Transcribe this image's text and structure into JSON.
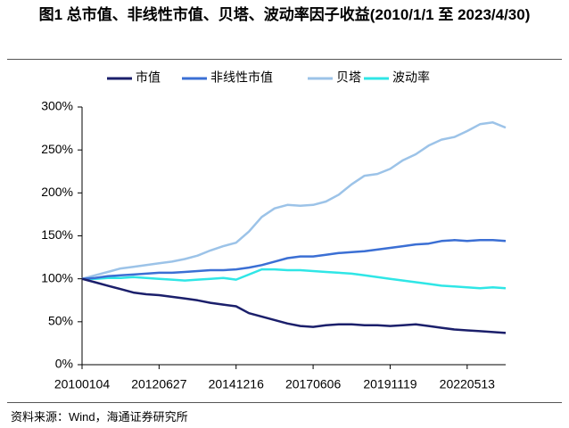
{
  "chart_data": {
    "type": "line",
    "title": "图1 总市值、非线性市值、贝塔、波动率因子收益(2010/1/1 至 2023/4/30)",
    "source": "资料来源：Wind，海通证券研究所",
    "categories": [
      "20100104",
      null,
      null,
      null,
      null,
      null,
      "20120627",
      null,
      null,
      null,
      null,
      null,
      "20141216",
      null,
      null,
      null,
      null,
      null,
      "20170606",
      null,
      null,
      null,
      null,
      null,
      "20191119",
      null,
      null,
      null,
      null,
      null,
      "20220513",
      null,
      null,
      null
    ],
    "series": [
      {
        "name": "市值",
        "color": "#1b1f6b",
        "values": [
          100,
          96,
          92,
          88,
          84,
          82,
          81,
          79,
          77,
          75,
          72,
          70,
          68,
          60,
          56,
          52,
          48,
          45,
          44,
          46,
          47,
          47,
          46,
          46,
          45,
          46,
          47,
          45,
          43,
          41,
          40,
          39,
          38,
          37
        ]
      },
      {
        "name": "非线性市值",
        "color": "#3b6fd4",
        "values": [
          100,
          101,
          103,
          104,
          105,
          106,
          107,
          107,
          108,
          109,
          110,
          110,
          111,
          113,
          116,
          120,
          124,
          126,
          126,
          128,
          130,
          131,
          132,
          134,
          136,
          138,
          140,
          141,
          144,
          145,
          144,
          145,
          145,
          144
        ]
      },
      {
        "name": "贝塔",
        "color": "#9cc3e8",
        "values": [
          100,
          104,
          108,
          112,
          114,
          116,
          118,
          120,
          123,
          127,
          133,
          138,
          142,
          155,
          172,
          182,
          186,
          185,
          186,
          190,
          198,
          210,
          220,
          222,
          228,
          238,
          245,
          255,
          262,
          265,
          272,
          280,
          282,
          276
        ]
      },
      {
        "name": "波动率",
        "color": "#2fe6e6",
        "values": [
          100,
          100,
          101,
          101,
          102,
          101,
          100,
          99,
          98,
          99,
          100,
          101,
          99,
          105,
          111,
          111,
          110,
          110,
          109,
          108,
          107,
          106,
          104,
          102,
          100,
          98,
          96,
          94,
          92,
          91,
          90,
          89,
          90,
          89
        ]
      }
    ],
    "ylim": [
      0,
      300
    ],
    "yticks": [
      {
        "value": 0,
        "label": "0%"
      },
      {
        "value": 50,
        "label": "50%"
      },
      {
        "value": 100,
        "label": "100%"
      },
      {
        "value": 150,
        "label": "150%"
      },
      {
        "value": 200,
        "label": "200%"
      },
      {
        "value": 250,
        "label": "250%"
      },
      {
        "value": 300,
        "label": "300%"
      }
    ],
    "legend": "top"
  }
}
